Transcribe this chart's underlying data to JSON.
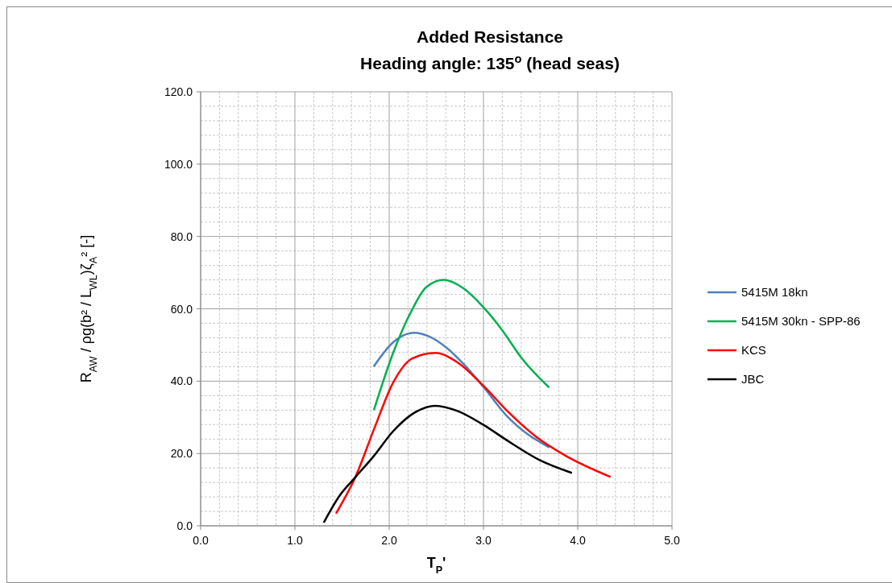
{
  "chart_data": {
    "type": "line",
    "title": "Added Resistance",
    "subtitle": "Heading angle:  135$^{o}$ (head seas)",
    "xlabel": "T$_{P}$'",
    "ylabel": "R$_{AW}$ / ρg(b² / L$_{WL}$)ζ$_{A}$² [-]",
    "xlim": [
      0,
      5
    ],
    "xticks": [
      {
        "value": 0,
        "label": "0.0"
      },
      {
        "value": 1,
        "label": "1.0"
      },
      {
        "value": 2,
        "label": "2.0"
      },
      {
        "value": 3,
        "label": "3.0"
      },
      {
        "value": 4,
        "label": "4.0"
      },
      {
        "value": 5,
        "label": "5.0"
      }
    ],
    "ylim": [
      0,
      120
    ],
    "yticks": [
      {
        "value": 0,
        "label": "0.0"
      },
      {
        "value": 20,
        "label": "20.0"
      },
      {
        "value": 40,
        "label": "40.0"
      },
      {
        "value": 60,
        "label": "60.0"
      },
      {
        "value": 80,
        "label": "80.0"
      },
      {
        "value": 100,
        "label": "100.0"
      },
      {
        "value": 120,
        "label": "120.0"
      }
    ],
    "grid": true,
    "legend": "right",
    "marker": "none",
    "line_style": "solid",
    "series": [
      {
        "name": "5415M 18kn",
        "color": "#4f81bd",
        "x": [
          1.84,
          2.04,
          2.27,
          2.41,
          2.61,
          2.79,
          3.0,
          3.24,
          3.47,
          3.69
        ],
        "values": [
          44.2,
          50.7,
          53.4,
          52.5,
          49.2,
          44.7,
          38.4,
          30.6,
          25.3,
          21.8
        ]
      },
      {
        "name": "5415M 30kn - SPP-86",
        "color": "#00b050",
        "x": [
          1.84,
          2.04,
          2.24,
          2.39,
          2.58,
          2.79,
          3.0,
          3.19,
          3.41,
          3.69
        ],
        "values": [
          32.2,
          47.7,
          59.6,
          65.9,
          68.0,
          65.6,
          60.4,
          54.4,
          46.2,
          38.4
        ]
      },
      {
        "name": "KCS",
        "color": "#ff0000",
        "x": [
          1.44,
          1.64,
          1.84,
          2.04,
          2.24,
          2.49,
          2.73,
          3.0,
          3.27,
          3.56,
          3.87,
          4.34
        ],
        "values": [
          3.6,
          13.4,
          26.8,
          39.5,
          46.2,
          47.8,
          45.1,
          38.7,
          31.3,
          24.6,
          19.4,
          13.6
        ]
      },
      {
        "name": "JBC",
        "color": "#000000",
        "x": [
          1.31,
          1.47,
          1.64,
          1.84,
          2.04,
          2.27,
          2.49,
          2.73,
          3.0,
          3.24,
          3.61,
          3.93
        ],
        "values": [
          1.1,
          8.2,
          13.4,
          19.4,
          26.1,
          31.3,
          33.2,
          31.7,
          27.9,
          23.8,
          18.0,
          14.7
        ]
      }
    ]
  }
}
